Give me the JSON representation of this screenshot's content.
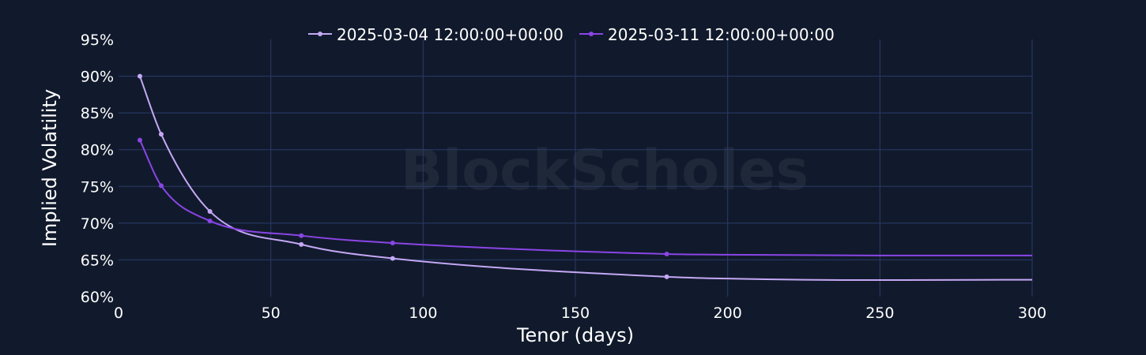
{
  "watermark": "BlockScholes",
  "chart_data": {
    "type": "line",
    "xlabel": "Tenor (days)",
    "ylabel": "Implied Volatility",
    "xlim": [
      0,
      300
    ],
    "ylim": [
      60,
      95
    ],
    "x_ticks": [
      0,
      50,
      100,
      150,
      200,
      250,
      300
    ],
    "y_ticks": [
      60,
      65,
      70,
      75,
      80,
      85,
      90,
      95
    ],
    "y_tick_suffix": "%",
    "grid": true,
    "legend_position": "top-center",
    "series": [
      {
        "name": "2025-03-04 12:00:00+00:00",
        "color": "#c4a8f5",
        "x": [
          7,
          14,
          30,
          60,
          90,
          180
        ],
        "y": [
          90.0,
          82.1,
          71.6,
          67.1,
          65.2,
          62.7
        ],
        "curve_x": [
          180,
          200,
          250,
          300
        ],
        "curve_y": [
          62.7,
          62.45,
          62.25,
          62.3
        ]
      },
      {
        "name": "2025-03-11 12:00:00+00:00",
        "color": "#8a45e6",
        "x": [
          7,
          14,
          30,
          60,
          90,
          180
        ],
        "y": [
          81.3,
          75.1,
          70.3,
          68.3,
          67.3,
          65.8
        ],
        "curve_x": [
          180,
          200,
          250,
          300
        ],
        "curve_y": [
          65.8,
          65.7,
          65.6,
          65.6
        ]
      }
    ]
  }
}
